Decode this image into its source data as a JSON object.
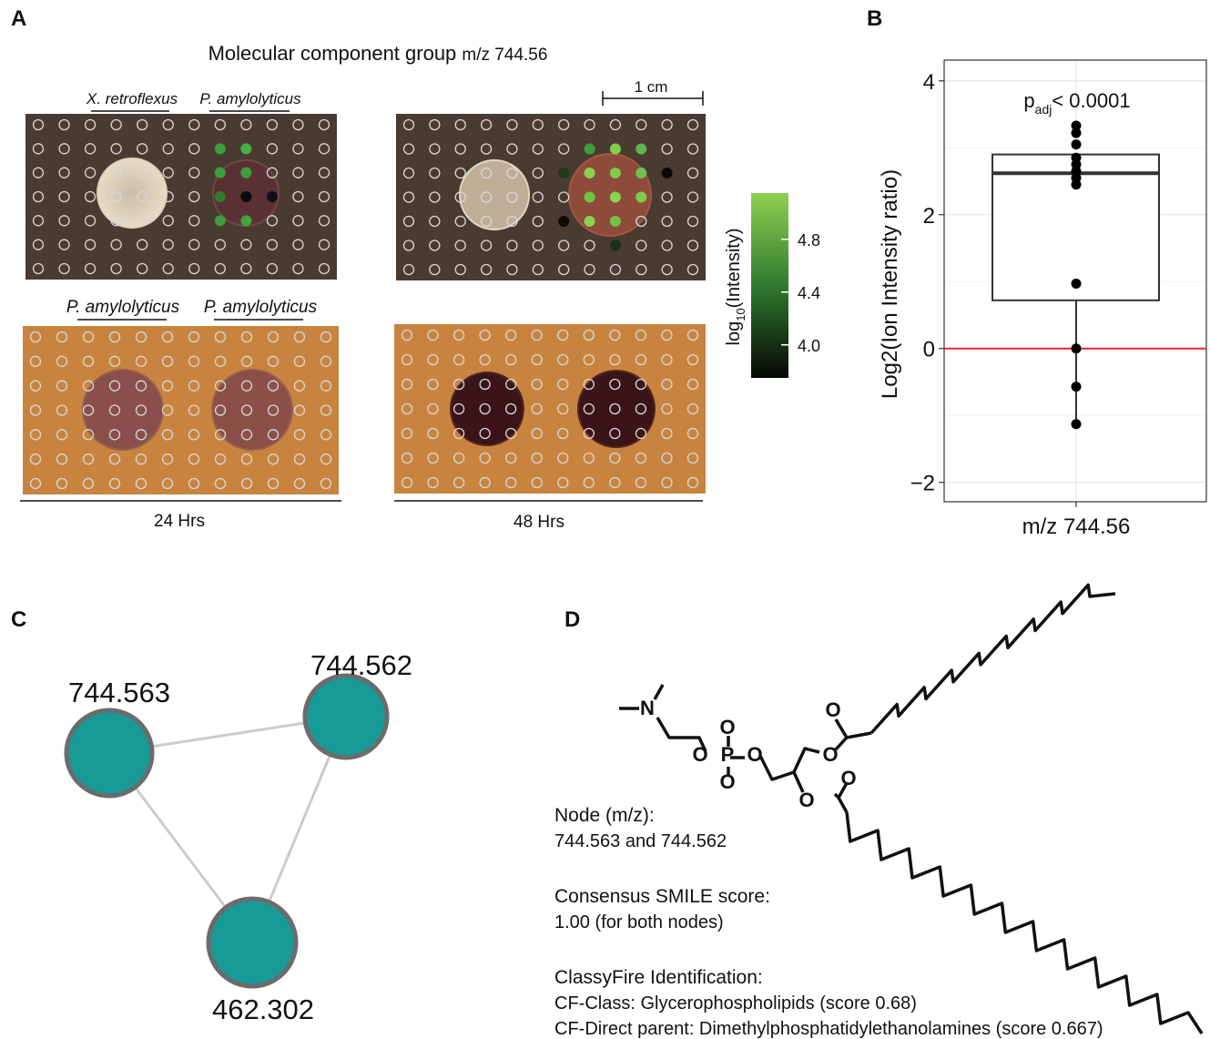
{
  "panel_a": {
    "label": "A",
    "title": "Molecular component group",
    "title_mz": "m/z 744.56",
    "scale_bar": "1 cm",
    "top_labels": [
      "X. retroflexus",
      "P. amylolyticus"
    ],
    "bottom_labels": [
      "P. amylolyticus",
      "P. amylolyticus"
    ],
    "times": [
      "24 Hrs",
      "48 Hrs"
    ],
    "colorbar": {
      "label_parts": [
        "log",
        "10",
        "(Intensity)"
      ],
      "lim": [
        3.75,
        5.15
      ],
      "ticks": [
        {
          "value": 4.0,
          "label": "4.0"
        },
        4.4,
        4.8
      ]
    }
  },
  "chart_data": {
    "type": "box",
    "label": "B",
    "ylabel": "Log2(Ion Intensity ratio)",
    "categories": [
      "m/z 744.56"
    ],
    "annotation_parts": [
      "p",
      "adj",
      "< 0.0001"
    ],
    "ylim": [
      -2.29,
      4.31
    ],
    "yticks": [
      {
        "value": -2,
        "label": "−2"
      },
      0,
      2,
      4
    ],
    "grid": true,
    "hline": 0,
    "hline_color": "#e8262a",
    "box": {
      "q1": 0.72,
      "median": 2.62,
      "q3": 2.9,
      "whisker_low": -1.13
    },
    "points": [
      3.33,
      3.22,
      3.05,
      2.85,
      2.75,
      2.65,
      2.55,
      2.45,
      0.97,
      0.0,
      -0.57,
      -1.13
    ]
  },
  "panel_c": {
    "label": "C",
    "nodes": [
      {
        "label": "744.563"
      },
      {
        "label": "744.562"
      },
      {
        "label": "462.302"
      }
    ]
  },
  "panel_d": {
    "label": "D",
    "atoms": [
      "N",
      "O",
      "P",
      "O",
      "O",
      "O",
      "O",
      "O",
      "O",
      "O"
    ],
    "lines": [
      "Node (m/z):",
      "744.563 and 744.562",
      "Consensus SMILE score:",
      "1.00 (for both nodes)",
      "ClassyFire Identification:",
      "CF-Class: Glycerophospholipids (score 0.68)",
      "CF-Direct parent: Dimethylphosphatidylethanolamines (score 0.667)"
    ]
  }
}
